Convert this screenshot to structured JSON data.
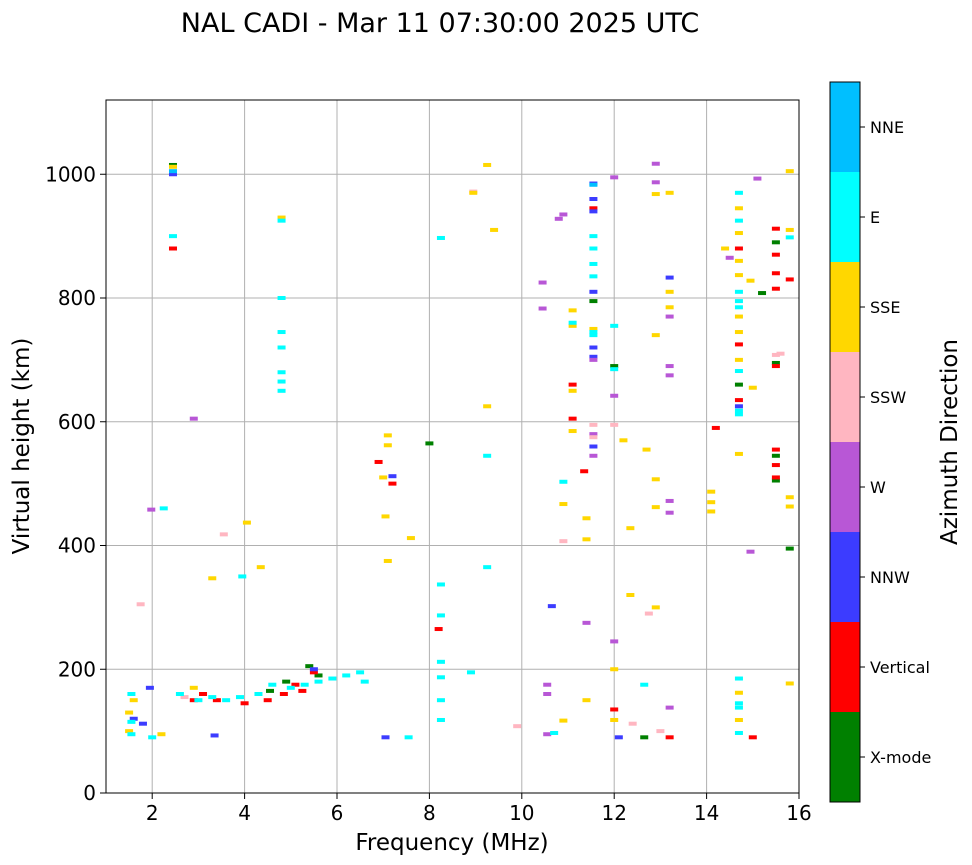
{
  "chart_data": {
    "type": "scatter",
    "title": "NAL CADI - Mar 11 07:30:00 2025 UTC",
    "xlabel": "Frequency (MHz)",
    "ylabel": "Virtual height (km)",
    "xlim": [
      1,
      16
    ],
    "ylim": [
      0,
      1120
    ],
    "xticks": [
      2,
      4,
      6,
      8,
      10,
      12,
      14,
      16
    ],
    "xtick_labels": [
      "2",
      "4",
      "6",
      "8",
      "10",
      "12",
      "14",
      "16"
    ],
    "yticks": [
      0,
      200,
      400,
      600,
      800,
      1000
    ],
    "ytick_labels": [
      "0",
      "200",
      "400",
      "600",
      "800",
      "1000"
    ],
    "grid": true,
    "colorbar": {
      "label": "Azimuth Direction",
      "categories": [
        "X-mode",
        "Vertical",
        "NNW",
        "W",
        "SSW",
        "SSE",
        "E",
        "NNE"
      ],
      "colors": [
        "#008000",
        "#ff0000",
        "#3c3cff",
        "#b857d6",
        "#ffb6c1",
        "#ffd700",
        "#00ffff",
        "#00bfff"
      ]
    },
    "series": [
      {
        "name": "X-mode",
        "points": [
          [
            2.45,
            1015
          ],
          [
            4.55,
            165
          ],
          [
            4.9,
            180
          ],
          [
            5.4,
            205
          ],
          [
            5.6,
            190
          ],
          [
            8.0,
            565
          ],
          [
            11.55,
            795
          ],
          [
            12.0,
            690
          ],
          [
            12.65,
            90
          ],
          [
            14.7,
            660
          ],
          [
            15.2,
            808
          ],
          [
            15.5,
            505
          ],
          [
            15.5,
            545
          ],
          [
            15.5,
            695
          ],
          [
            15.5,
            890
          ],
          [
            15.8,
            395
          ]
        ]
      },
      {
        "name": "Vertical",
        "points": [
          [
            2.45,
            880
          ],
          [
            2.9,
            150
          ],
          [
            3.1,
            160
          ],
          [
            3.4,
            150
          ],
          [
            4.0,
            145
          ],
          [
            4.5,
            150
          ],
          [
            4.85,
            160
          ],
          [
            5.1,
            175
          ],
          [
            5.25,
            165
          ],
          [
            5.5,
            195
          ],
          [
            6.9,
            535
          ],
          [
            7.2,
            500
          ],
          [
            8.2,
            265
          ],
          [
            11.1,
            660
          ],
          [
            11.1,
            605
          ],
          [
            11.35,
            520
          ],
          [
            11.55,
            945
          ],
          [
            12.0,
            135
          ],
          [
            13.2,
            90
          ],
          [
            14.2,
            590
          ],
          [
            14.7,
            880
          ],
          [
            14.7,
            725
          ],
          [
            14.7,
            635
          ],
          [
            15.0,
            90
          ],
          [
            15.5,
            912
          ],
          [
            15.5,
            870
          ],
          [
            15.5,
            840
          ],
          [
            15.5,
            815
          ],
          [
            15.5,
            690
          ],
          [
            15.5,
            555
          ],
          [
            15.5,
            530
          ],
          [
            15.5,
            510
          ],
          [
            15.8,
            830
          ]
        ]
      },
      {
        "name": "NNW",
        "points": [
          [
            1.6,
            120
          ],
          [
            1.8,
            112
          ],
          [
            1.95,
            170
          ],
          [
            2.45,
            1000
          ],
          [
            3.35,
            93
          ],
          [
            5.5,
            200
          ],
          [
            7.05,
            90
          ],
          [
            7.2,
            512
          ],
          [
            10.65,
            302
          ],
          [
            11.55,
            985
          ],
          [
            11.55,
            960
          ],
          [
            11.55,
            940
          ],
          [
            11.55,
            810
          ],
          [
            11.55,
            720
          ],
          [
            11.55,
            705
          ],
          [
            11.55,
            560
          ],
          [
            12.1,
            90
          ],
          [
            13.2,
            833
          ],
          [
            14.7,
            625
          ]
        ]
      },
      {
        "name": "W",
        "points": [
          [
            1.98,
            458
          ],
          [
            2.9,
            605
          ],
          [
            10.45,
            825
          ],
          [
            10.45,
            783
          ],
          [
            10.55,
            175
          ],
          [
            10.55,
            160
          ],
          [
            10.55,
            95
          ],
          [
            10.8,
            928
          ],
          [
            10.9,
            935
          ],
          [
            11.55,
            700
          ],
          [
            11.55,
            580
          ],
          [
            11.55,
            545
          ],
          [
            11.4,
            275
          ],
          [
            12.0,
            995
          ],
          [
            12.0,
            642
          ],
          [
            12.0,
            245
          ],
          [
            12.9,
            1017
          ],
          [
            12.9,
            987
          ],
          [
            13.2,
            770
          ],
          [
            13.2,
            690
          ],
          [
            13.2,
            675
          ],
          [
            13.2,
            472
          ],
          [
            13.2,
            453
          ],
          [
            13.2,
            138
          ],
          [
            14.5,
            865
          ],
          [
            15.1,
            993
          ],
          [
            14.95,
            390
          ]
        ]
      },
      {
        "name": "SSW",
        "points": [
          [
            1.75,
            305
          ],
          [
            2.7,
            155
          ],
          [
            3.55,
            418
          ],
          [
            8.95,
            972
          ],
          [
            9.9,
            108
          ],
          [
            10.9,
            407
          ],
          [
            11.55,
            575
          ],
          [
            11.55,
            595
          ],
          [
            12.0,
            595
          ],
          [
            12.4,
            112
          ],
          [
            12.75,
            290
          ],
          [
            13.0,
            100
          ],
          [
            15.5,
            708
          ],
          [
            15.6,
            710
          ]
        ]
      },
      {
        "name": "SSE",
        "points": [
          [
            1.5,
            100
          ],
          [
            1.5,
            130
          ],
          [
            1.6,
            150
          ],
          [
            2.2,
            95
          ],
          [
            2.45,
            1012
          ],
          [
            2.9,
            170
          ],
          [
            3.3,
            347
          ],
          [
            4.05,
            437
          ],
          [
            4.35,
            365
          ],
          [
            4.8,
            930
          ],
          [
            7.0,
            510
          ],
          [
            7.05,
            447
          ],
          [
            7.1,
            578
          ],
          [
            7.1,
            562
          ],
          [
            7.1,
            375
          ],
          [
            7.6,
            412
          ],
          [
            8.95,
            970
          ],
          [
            9.25,
            1015
          ],
          [
            9.25,
            625
          ],
          [
            9.4,
            910
          ],
          [
            10.9,
            467
          ],
          [
            10.9,
            117
          ],
          [
            11.1,
            780
          ],
          [
            11.1,
            755
          ],
          [
            11.1,
            650
          ],
          [
            11.1,
            585
          ],
          [
            11.4,
            444
          ],
          [
            11.4,
            410
          ],
          [
            11.4,
            150
          ],
          [
            11.55,
            750
          ],
          [
            12.0,
            200
          ],
          [
            12.0,
            118
          ],
          [
            12.2,
            570
          ],
          [
            12.35,
            428
          ],
          [
            12.35,
            320
          ],
          [
            12.7,
            555
          ],
          [
            12.9,
            968
          ],
          [
            12.9,
            740
          ],
          [
            12.9,
            507
          ],
          [
            12.9,
            462
          ],
          [
            12.9,
            300
          ],
          [
            13.2,
            970
          ],
          [
            13.2,
            810
          ],
          [
            13.2,
            785
          ],
          [
            14.1,
            487
          ],
          [
            14.1,
            470
          ],
          [
            14.1,
            455
          ],
          [
            14.4,
            880
          ],
          [
            14.7,
            945
          ],
          [
            14.7,
            905
          ],
          [
            14.7,
            860
          ],
          [
            14.7,
            837
          ],
          [
            14.7,
            770
          ],
          [
            14.7,
            745
          ],
          [
            14.7,
            700
          ],
          [
            14.7,
            548
          ],
          [
            14.7,
            162
          ],
          [
            14.7,
            118
          ],
          [
            14.95,
            828
          ],
          [
            15.0,
            655
          ],
          [
            15.8,
            1005
          ],
          [
            15.8,
            910
          ],
          [
            15.8,
            478
          ],
          [
            15.8,
            463
          ],
          [
            15.8,
            177
          ]
        ]
      },
      {
        "name": "E",
        "points": [
          [
            1.55,
            95
          ],
          [
            1.55,
            115
          ],
          [
            1.55,
            160
          ],
          [
            2.0,
            90
          ],
          [
            2.25,
            460
          ],
          [
            2.45,
            900
          ],
          [
            2.6,
            160
          ],
          [
            3.0,
            150
          ],
          [
            3.3,
            155
          ],
          [
            3.6,
            150
          ],
          [
            3.9,
            155
          ],
          [
            3.95,
            350
          ],
          [
            4.3,
            160
          ],
          [
            4.6,
            175
          ],
          [
            4.8,
            925
          ],
          [
            4.8,
            800
          ],
          [
            4.8,
            745
          ],
          [
            4.8,
            720
          ],
          [
            4.8,
            680
          ],
          [
            4.8,
            665
          ],
          [
            4.8,
            650
          ],
          [
            5.0,
            170
          ],
          [
            5.3,
            175
          ],
          [
            5.6,
            180
          ],
          [
            5.9,
            185
          ],
          [
            6.2,
            190
          ],
          [
            6.5,
            195
          ],
          [
            6.6,
            180
          ],
          [
            7.55,
            90
          ],
          [
            8.25,
            897
          ],
          [
            8.25,
            337
          ],
          [
            8.25,
            287
          ],
          [
            8.25,
            212
          ],
          [
            8.25,
            187
          ],
          [
            8.25,
            150
          ],
          [
            8.25,
            118
          ],
          [
            8.9,
            195
          ],
          [
            9.25,
            545
          ],
          [
            9.25,
            365
          ],
          [
            10.7,
            97
          ],
          [
            10.9,
            503
          ],
          [
            11.1,
            760
          ],
          [
            11.55,
            900
          ],
          [
            11.55,
            880
          ],
          [
            11.55,
            855
          ],
          [
            11.55,
            835
          ],
          [
            11.55,
            745
          ],
          [
            11.55,
            740
          ],
          [
            12.0,
            755
          ],
          [
            12.0,
            685
          ],
          [
            12.65,
            175
          ],
          [
            14.7,
            970
          ],
          [
            14.7,
            925
          ],
          [
            14.7,
            810
          ],
          [
            14.7,
            795
          ],
          [
            14.7,
            785
          ],
          [
            14.7,
            682
          ],
          [
            14.7,
            618
          ],
          [
            14.7,
            612
          ],
          [
            14.7,
            185
          ],
          [
            14.7,
            145
          ],
          [
            14.7,
            138
          ],
          [
            14.7,
            97
          ],
          [
            15.8,
            898
          ]
        ]
      },
      {
        "name": "NNE",
        "points": [
          [
            2.45,
            1005
          ],
          [
            11.55,
            983
          ]
        ]
      }
    ]
  }
}
